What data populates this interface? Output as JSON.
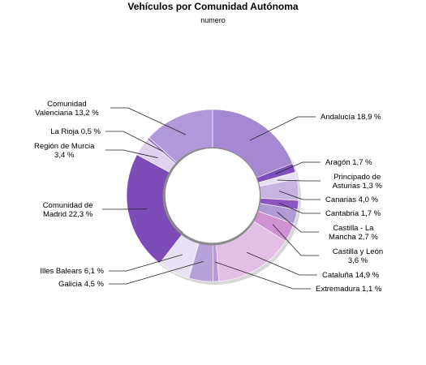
{
  "title": "Vehículos por Comunidad Autónoma",
  "subtitle": "numero",
  "chart_data": {
    "type": "pie",
    "title": "Vehículos por Comunidad Autónoma",
    "subtitle": "numero",
    "donut": true,
    "unit": "%",
    "legend": "none",
    "slices": [
      {
        "label": [
          "Andalucía 18,9 %"
        ],
        "value": 18.9,
        "color": "#a488d2"
      },
      {
        "label": [
          "Aragón 1,7 %"
        ],
        "value": 1.7,
        "color": "#7d4fbc"
      },
      {
        "label": [
          "Principado de",
          "Asturias 1,3 %"
        ],
        "value": 1.3,
        "color": "#e8e0f2"
      },
      {
        "label": [
          "Canarias 4,0 %"
        ],
        "value": 4.0,
        "color": "#c8b4e2"
      },
      {
        "label": [
          "Cantabria 1,7 %"
        ],
        "value": 1.7,
        "color": "#8c55c0"
      },
      {
        "label": [
          "Castilla - La",
          "Mancha 2,7 %"
        ],
        "value": 2.7,
        "color": "#b19bd6"
      },
      {
        "label": [
          "Castilla y León",
          "3,6 %"
        ],
        "value": 3.6,
        "color": "#cf92d2"
      },
      {
        "label": [
          "Cataluña 14,9 %"
        ],
        "value": 14.9,
        "color": "#e3bfe6"
      },
      {
        "label": [
          "Extremadura 1,1 %"
        ],
        "value": 1.1,
        "color": "#b89ada"
      },
      {
        "label": [
          "Galicia 4,5 %"
        ],
        "value": 4.5,
        "color": "#b6a1d8"
      },
      {
        "label": [
          "Illes Balears 6,1 %"
        ],
        "value": 6.1,
        "color": "#e7e1f3"
      },
      {
        "label": [
          "Comunidad de",
          "Madrid 22,3 %"
        ],
        "value": 22.3,
        "color": "#7e4cb8"
      },
      {
        "label": [
          "Región de Murcia",
          "3,4 %"
        ],
        "value": 3.4,
        "color": "#dfd2ef"
      },
      {
        "label": [
          "La Rioja 0,5 %"
        ],
        "value": 0.5,
        "color": "#9f7fcd"
      },
      {
        "label": [
          "Comunidad",
          "Valenciana 13,2 %"
        ],
        "value": 13.2,
        "color": "#b198d8"
      }
    ]
  }
}
